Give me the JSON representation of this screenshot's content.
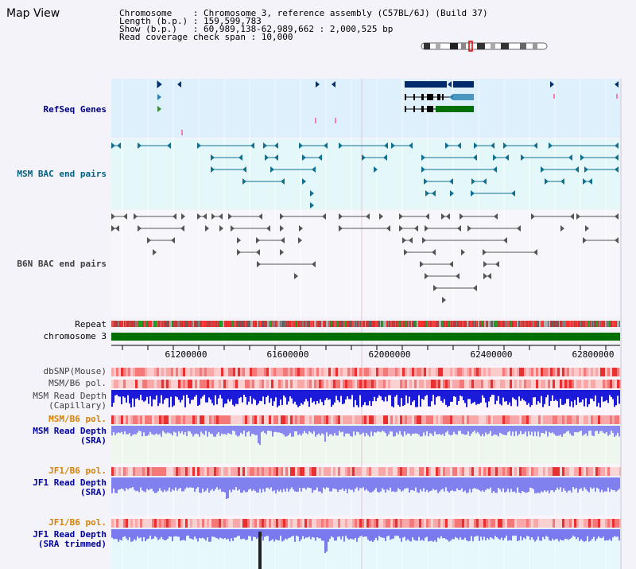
{
  "header": {
    "title": "Map View",
    "info_lines": [
      "Chromosome    : Chromosome 3, reference assembly (C57BL/6J) (Build 37)",
      "Length (b.p.) : 159,599,783",
      "Show (b.p.)   : 60,989,138-62,989,662 : 2,000,525 bp",
      "Read coverage check span : 10,000"
    ]
  },
  "tracks": {
    "refseq": "RefSeq Genes",
    "msm_bac": "MSM BAC end pairs",
    "b6n_bac": "B6N BAC end pairs",
    "repeat": "Repeat",
    "chromosome": "chromosome 3",
    "dbsnp": "dbSNP(Mouse)",
    "msm_b6_pol_1": "MSM/B6 pol.",
    "msm_read_depth_cap": "MSM Read Depth\n(Capillary)",
    "msm_b6_pol_2": "MSM/B6 pol.",
    "msm_read_depth_sra": "MSM Read Depth\n(SRA)",
    "jf1_b6_pol_1": "JF1/B6 pol.",
    "jf1_read_depth_sra": "JF1 Read Depth\n(SRA)",
    "jf1_b6_pol_2": "JF1/B6 pol.",
    "jf1_read_depth_trim": "JF1 Read Depth\n(SRA trimmed)"
  },
  "axis": {
    "ticks": [
      "61200000",
      "61600000",
      "62000000",
      "62400000",
      "62800000"
    ]
  },
  "colors": {
    "navy_label": "#000080",
    "teal_label": "#006080",
    "gray_label": "#404040",
    "orange_label": "#d88000",
    "chromosome_bar": "#007000",
    "read_depth": "#2020e0",
    "sra_depth": "#8080f0"
  }
}
